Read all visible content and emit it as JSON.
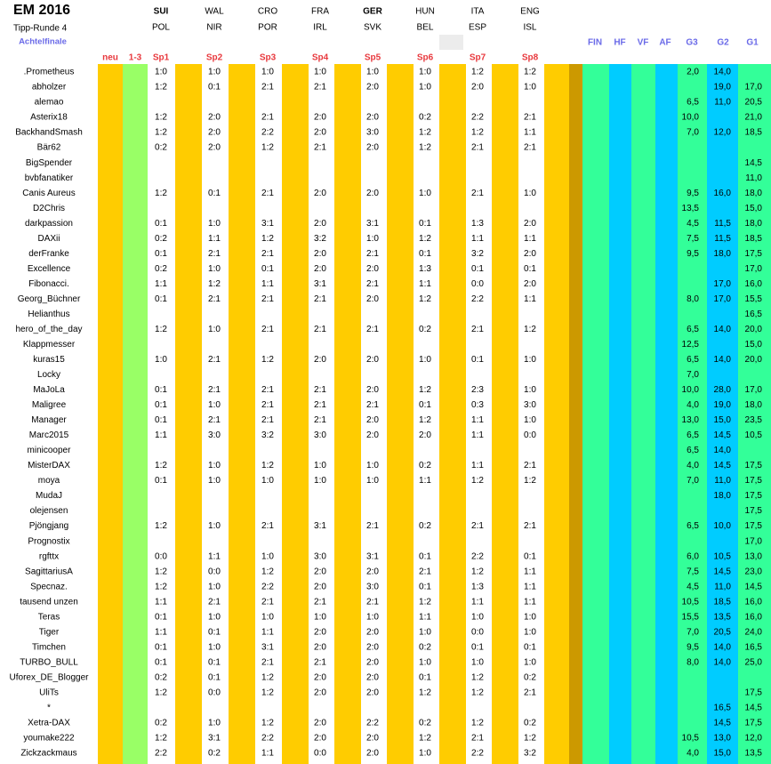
{
  "header": {
    "title": "EM 2016",
    "subtitle": "Tipp-Runde 4",
    "round": "Achtelfinale"
  },
  "home_teams": [
    "SUI",
    "WAL",
    "CRO",
    "FRA",
    "GER",
    "HUN",
    "ITA",
    "ENG"
  ],
  "away_teams": [
    "POL",
    "NIR",
    "POR",
    "IRL",
    "SVK",
    "BEL",
    "ESP",
    "ISL"
  ],
  "column_headers": {
    "left": [
      "neu",
      "1-3"
    ],
    "games": [
      "Sp1",
      "Sp2",
      "Sp3",
      "Sp4",
      "Sp5",
      "Sp6",
      "Sp7",
      "Sp8"
    ],
    "right": [
      "FIN",
      "HF",
      "VF",
      "AF",
      "G3",
      "G2",
      "G1"
    ]
  },
  "rows": [
    {
      "name": ".Prometheus",
      "tips": [
        "1:0",
        "1:0",
        "1:0",
        "1:0",
        "1:0",
        "1:0",
        "1:2",
        "1:2"
      ],
      "g3": "2,0",
      "g2": "14,0",
      "g1": null
    },
    {
      "name": "abholzer",
      "tips": [
        "1:2",
        "0:1",
        "2:1",
        "2:1",
        "2:0",
        "1:0",
        "2:0",
        "1:0"
      ],
      "g3": null,
      "g2": "19,0",
      "g1": "17,0"
    },
    {
      "name": "alemao",
      "tips": null,
      "g3": "6,5",
      "g2": "11,0",
      "g1": "20,5"
    },
    {
      "name": "Asterix18",
      "tips": [
        "1:2",
        "2:0",
        "2:1",
        "2:0",
        "2:0",
        "0:2",
        "2:2",
        "2:1"
      ],
      "g3": "10,0",
      "g2": null,
      "g1": "21,0"
    },
    {
      "name": "BackhandSmash",
      "tips": [
        "1:2",
        "2:0",
        "2:2",
        "2:0",
        "3:0",
        "1:2",
        "1:2",
        "1:1"
      ],
      "g3": "7,0",
      "g2": "12,0",
      "g1": "18,5"
    },
    {
      "name": "Bär62",
      "tips": [
        "0:2",
        "2:0",
        "1:2",
        "2:1",
        "2:0",
        "1:2",
        "2:1",
        "2:1"
      ],
      "g3": null,
      "g2": null,
      "g1": null
    },
    {
      "name": "BigSpender",
      "tips": null,
      "g3": null,
      "g2": null,
      "g1": "14,5"
    },
    {
      "name": "bvbfanatiker",
      "tips": null,
      "g3": null,
      "g2": null,
      "g1": "11,0"
    },
    {
      "name": "Canis Aureus",
      "tips": [
        "1:2",
        "0:1",
        "2:1",
        "2:0",
        "2:0",
        "1:0",
        "2:1",
        "1:0"
      ],
      "g3": "9,5",
      "g2": "16,0",
      "g1": "18,0"
    },
    {
      "name": "D2Chris",
      "tips": null,
      "g3": "13,5",
      "g2": null,
      "g1": "15,0"
    },
    {
      "name": "darkpassion",
      "tips": [
        "0:1",
        "1:0",
        "3:1",
        "2:0",
        "3:1",
        "0:1",
        "1:3",
        "2:0"
      ],
      "g3": "4,5",
      "g2": "11,5",
      "g1": "18,0"
    },
    {
      "name": "DAXii",
      "tips": [
        "0:2",
        "1:1",
        "1:2",
        "3:2",
        "1:0",
        "1:2",
        "1:1",
        "1:1"
      ],
      "g3": "7,5",
      "g2": "11,5",
      "g1": "18,5"
    },
    {
      "name": "derFranke",
      "tips": [
        "0:1",
        "2:1",
        "2:1",
        "2:0",
        "2:1",
        "0:1",
        "3:2",
        "2:0"
      ],
      "g3": "9,5",
      "g2": "18,0",
      "g1": "17,5"
    },
    {
      "name": "Excellence",
      "tips": [
        "0:2",
        "1:0",
        "0:1",
        "2:0",
        "2:0",
        "1:3",
        "0:1",
        "0:1"
      ],
      "g3": null,
      "g2": null,
      "g1": "17,0"
    },
    {
      "name": "Fibonacci.",
      "tips": [
        "1:1",
        "1:2",
        "1:1",
        "3:1",
        "2:1",
        "1:1",
        "0:0",
        "2:0"
      ],
      "g3": null,
      "g2": "17,0",
      "g1": "16,0"
    },
    {
      "name": "Georg_Büchner",
      "tips": [
        "0:1",
        "2:1",
        "2:1",
        "2:1",
        "2:0",
        "1:2",
        "2:2",
        "1:1"
      ],
      "g3": "8,0",
      "g2": "17,0",
      "g1": "15,5"
    },
    {
      "name": "Helianthus",
      "tips": null,
      "g3": null,
      "g2": null,
      "g1": "16,5"
    },
    {
      "name": "hero_of_the_day",
      "tips": [
        "1:2",
        "1:0",
        "2:1",
        "2:1",
        "2:1",
        "0:2",
        "2:1",
        "1:2"
      ],
      "g3": "6,5",
      "g2": "14,0",
      "g1": "20,0"
    },
    {
      "name": "Klappmesser",
      "tips": null,
      "g3": "12,5",
      "g2": null,
      "g1": "15,0"
    },
    {
      "name": "kuras15",
      "tips": [
        "1:0",
        "2:1",
        "1:2",
        "2:0",
        "2:0",
        "1:0",
        "0:1",
        "1:0"
      ],
      "g3": "6,5",
      "g2": "14,0",
      "g1": "20,0"
    },
    {
      "name": "Locky",
      "tips": null,
      "g3": "7,0",
      "g2": null,
      "g1": null
    },
    {
      "name": "MaJoLa",
      "tips": [
        "0:1",
        "2:1",
        "2:1",
        "2:1",
        "2:0",
        "1:2",
        "2:3",
        "1:0"
      ],
      "g3": "10,0",
      "g2": "28,0",
      "g1": "17,0"
    },
    {
      "name": "Maligree",
      "tips": [
        "0:1",
        "1:0",
        "2:1",
        "2:1",
        "2:1",
        "0:1",
        "0:3",
        "3:0"
      ],
      "g3": "4,0",
      "g2": "19,0",
      "g1": "18,0"
    },
    {
      "name": "Manager",
      "tips": [
        "0:1",
        "2:1",
        "2:1",
        "2:1",
        "2:0",
        "1:2",
        "1:1",
        "1:0"
      ],
      "g3": "13,0",
      "g2": "15,0",
      "g1": "23,5"
    },
    {
      "name": "Marc2015",
      "tips": [
        "1:1",
        "3:0",
        "3:2",
        "3:0",
        "2:0",
        "2:0",
        "1:1",
        "0:0"
      ],
      "g3": "6,5",
      "g2": "14,5",
      "g1": "10,5"
    },
    {
      "name": "minicooper",
      "tips": null,
      "g3": "6,5",
      "g2": "14,0",
      "g1": null
    },
    {
      "name": "MisterDAX",
      "tips": [
        "1:2",
        "1:0",
        "1:2",
        "1:0",
        "1:0",
        "0:2",
        "1:1",
        "2:1"
      ],
      "g3": "4,0",
      "g2": "14,5",
      "g1": "17,5"
    },
    {
      "name": "moya",
      "tips": [
        "0:1",
        "1:0",
        "1:0",
        "1:0",
        "1:0",
        "1:1",
        "1:2",
        "1:2"
      ],
      "g3": "7,0",
      "g2": "11,0",
      "g1": "17,5"
    },
    {
      "name": "MudaJ",
      "tips": null,
      "g3": null,
      "g2": "18,0",
      "g1": "17,5"
    },
    {
      "name": "olejensen",
      "tips": null,
      "g3": null,
      "g2": null,
      "g1": "17,5"
    },
    {
      "name": "Pjöngjang",
      "tips": [
        "1:2",
        "1:0",
        "2:1",
        "3:1",
        "2:1",
        "0:2",
        "2:1",
        "2:1"
      ],
      "g3": "6,5",
      "g2": "10,0",
      "g1": "17,5"
    },
    {
      "name": "Prognostix",
      "tips": null,
      "g3": null,
      "g2": null,
      "g1": "17,0"
    },
    {
      "name": "rgfttx",
      "tips": [
        "0:0",
        "1:1",
        "1:0",
        "3:0",
        "3:1",
        "0:1",
        "2:2",
        "0:1"
      ],
      "g3": "6,0",
      "g2": "10,5",
      "g1": "13,0"
    },
    {
      "name": "SagittariusA",
      "tips": [
        "1:2",
        "0:0",
        "1:2",
        "2:0",
        "2:0",
        "2:1",
        "1:2",
        "1:1"
      ],
      "g3": "7,5",
      "g2": "14,5",
      "g1": "23,0"
    },
    {
      "name": "Specnaz.",
      "tips": [
        "1:2",
        "1:0",
        "2:2",
        "2:0",
        "3:0",
        "0:1",
        "1:3",
        "1:1"
      ],
      "g3": "4,5",
      "g2": "11,0",
      "g1": "14,5"
    },
    {
      "name": "tausend unzen",
      "tips": [
        "1:1",
        "2:1",
        "2:1",
        "2:1",
        "2:1",
        "1:2",
        "1:1",
        "1:1"
      ],
      "g3": "10,5",
      "g2": "18,5",
      "g1": "16,0"
    },
    {
      "name": "Teras",
      "tips": [
        "0:1",
        "1:0",
        "1:0",
        "1:0",
        "1:0",
        "1:1",
        "1:0",
        "1:0"
      ],
      "g3": "15,5",
      "g2": "13,5",
      "g1": "16,0"
    },
    {
      "name": "Tiger",
      "tips": [
        "1:1",
        "0:1",
        "1:1",
        "2:0",
        "2:0",
        "1:0",
        "0:0",
        "1:0"
      ],
      "g3": "7,0",
      "g2": "20,5",
      "g1": "24,0"
    },
    {
      "name": "Timchen",
      "tips": [
        "0:1",
        "1:0",
        "3:1",
        "2:0",
        "2:0",
        "0:2",
        "0:1",
        "0:1"
      ],
      "g3": "9,5",
      "g2": "14,0",
      "g1": "16,5"
    },
    {
      "name": "TURBO_BULL",
      "tips": [
        "0:1",
        "0:1",
        "2:1",
        "2:1",
        "2:0",
        "1:0",
        "1:0",
        "1:0"
      ],
      "g3": "8,0",
      "g2": "14,0",
      "g1": "25,0"
    },
    {
      "name": "Uforex_DE_Blogger",
      "tips": [
        "0:2",
        "0:1",
        "1:2",
        "2:0",
        "2:0",
        "0:1",
        "1:2",
        "0:2"
      ],
      "g3": null,
      "g2": null,
      "g1": null
    },
    {
      "name": "UliTs",
      "tips": [
        "1:2",
        "0:0",
        "1:2",
        "2:0",
        "2:0",
        "1:2",
        "1:2",
        "2:1"
      ],
      "g3": null,
      "g2": null,
      "g1": "17,5"
    },
    {
      "name": "*",
      "tips": null,
      "g3": null,
      "g2": "16,5",
      "g1": "14,5"
    },
    {
      "name": "Xetra-DAX",
      "tips": [
        "0:2",
        "1:0",
        "1:2",
        "2:0",
        "2:2",
        "0:2",
        "1:2",
        "0:2"
      ],
      "g3": null,
      "g2": "14,5",
      "g1": "17,5"
    },
    {
      "name": "youmake222",
      "tips": [
        "1:2",
        "3:1",
        "2:2",
        "2:0",
        "2:0",
        "1:2",
        "2:1",
        "1:2"
      ],
      "g3": "10,5",
      "g2": "13,0",
      "g1": "12,0"
    },
    {
      "name": "Zickzackmaus",
      "tips": [
        "2:2",
        "0:2",
        "1:1",
        "0:0",
        "2:0",
        "1:0",
        "2:2",
        "3:2"
      ],
      "g3": "4,0",
      "g2": "15,0",
      "g1": "13,5"
    }
  ]
}
